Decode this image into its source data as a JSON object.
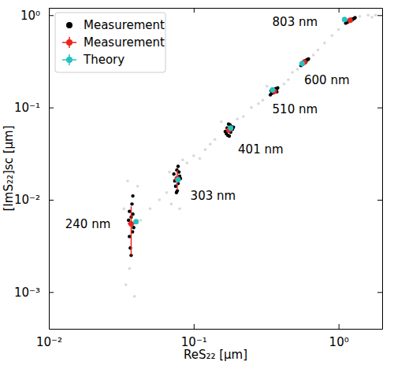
{
  "chart_data": {
    "type": "scatter",
    "x_label": "ReS₂₂ [μm]",
    "y_label": "[ImS₂₂]sc [μm]",
    "log": true,
    "grid": false,
    "legend": "upper left",
    "xlim": [
      0.01,
      2
    ],
    "ylim": [
      0.0004,
      1.2
    ],
    "xticks": [
      {
        "value": 0.01,
        "label": "10⁻²"
      },
      {
        "value": 0.1,
        "label": "10⁻¹"
      },
      {
        "value": 1,
        "label": "10⁰"
      }
    ],
    "yticks": [
      {
        "value": 0.001,
        "label": "10⁻³"
      },
      {
        "value": 0.01,
        "label": "10⁻²"
      },
      {
        "value": 0.1,
        "label": "10⁻¹"
      },
      {
        "value": 1,
        "label": "10⁰"
      }
    ],
    "annotations": [
      {
        "text": "240 nm",
        "x": 0.0186,
        "y": 0.0055
      },
      {
        "text": "303 nm",
        "x": 0.136,
        "y": 0.011
      },
      {
        "text": "401 nm",
        "x": 0.29,
        "y": 0.035
      },
      {
        "text": "510 nm",
        "x": 0.5,
        "y": 0.095
      },
      {
        "text": "600 nm",
        "x": 0.83,
        "y": 0.2
      },
      {
        "text": "803 nm",
        "x": 0.5,
        "y": 0.85
      }
    ],
    "series": [
      {
        "color": "#b8b8b8",
        "marker": "circle",
        "x": [
          0.034,
          0.039,
          0.036,
          0.041,
          0.035,
          0.033,
          0.043,
          0.05,
          0.058,
          0.065,
          0.07,
          0.084,
          0.09,
          0.1,
          0.11,
          0.12,
          0.13,
          0.14,
          0.155,
          0.2,
          0.22,
          0.25,
          0.28,
          0.3,
          0.32,
          0.42,
          0.45,
          0.48,
          0.52,
          0.67,
          0.72,
          0.8,
          0.9,
          1.0,
          1.4,
          1.6,
          1.8,
          1.7,
          0.068,
          0.08
        ],
        "values": [
          0.0012,
          0.0009,
          0.0018,
          0.014,
          0.016,
          0.008,
          0.006,
          0.008,
          0.01,
          0.012,
          0.009,
          0.027,
          0.025,
          0.03,
          0.028,
          0.035,
          0.04,
          0.045,
          0.07,
          0.075,
          0.08,
          0.1,
          0.11,
          0.12,
          0.17,
          0.18,
          0.2,
          0.24,
          0.26,
          0.37,
          0.42,
          0.5,
          0.6,
          0.7,
          0.97,
          1.0,
          1.0,
          0.95,
          0.02,
          0.008
        ]
      },
      {
        "name": "Measurement",
        "color": "#000000",
        "marker": "circle",
        "x": [
          0.037,
          0.036,
          0.038,
          0.0365,
          0.0375,
          0.037,
          0.0385,
          0.0355,
          0.037,
          0.038,
          0.036,
          0.0378,
          0.077,
          0.075,
          0.079,
          0.076,
          0.078,
          0.074,
          0.08,
          0.077,
          0.0765,
          0.078,
          0.073,
          0.081,
          0.175,
          0.168,
          0.182,
          0.172,
          0.178,
          0.165,
          0.185,
          0.17,
          0.18,
          0.176,
          0.174,
          0.188,
          0.36,
          0.345,
          0.372,
          0.35,
          0.365,
          0.338,
          0.38,
          0.355,
          0.368,
          0.342,
          0.375,
          0.358,
          0.58,
          0.56,
          0.6,
          0.57,
          0.59,
          0.55,
          0.62,
          0.575,
          0.595,
          0.565,
          0.61,
          0.585,
          1.2,
          1.15,
          1.25,
          1.18,
          1.22,
          1.12,
          1.3,
          1.19,
          1.24,
          1.16,
          1.28,
          1.21
        ],
        "values": [
          0.0055,
          0.004,
          0.007,
          0.003,
          0.009,
          0.0065,
          0.005,
          0.006,
          0.0025,
          0.011,
          0.0075,
          0.0045,
          0.017,
          0.014,
          0.02,
          0.012,
          0.023,
          0.016,
          0.018,
          0.0125,
          0.021,
          0.015,
          0.019,
          0.017,
          0.057,
          0.052,
          0.062,
          0.05,
          0.065,
          0.055,
          0.058,
          0.06,
          0.054,
          0.049,
          0.066,
          0.061,
          0.15,
          0.142,
          0.158,
          0.148,
          0.155,
          0.137,
          0.163,
          0.145,
          0.16,
          0.152,
          0.148,
          0.157,
          0.31,
          0.295,
          0.325,
          0.3,
          0.318,
          0.285,
          0.335,
          0.305,
          0.312,
          0.292,
          0.33,
          0.32,
          0.88,
          0.84,
          0.91,
          0.86,
          0.9,
          0.82,
          0.94,
          0.87,
          0.89,
          0.85,
          0.92,
          0.88
        ]
      },
      {
        "name": "Measurement",
        "color": "#e8251f",
        "marker": "circle",
        "x": [
          0.037,
          0.077,
          0.175,
          0.36,
          0.58,
          1.2
        ],
        "values": [
          0.0055,
          0.017,
          0.057,
          0.15,
          0.31,
          0.88
        ],
        "x_errors": [
          0.002,
          0.003,
          0.006,
          0.01,
          0.015,
          0.04
        ],
        "y_errors": [
          0.003,
          0.004,
          0.004,
          0.008,
          0.015,
          0.03
        ]
      },
      {
        "name": "Theory",
        "color": "#25c2c4",
        "marker": "circle",
        "x": [
          0.04,
          0.078,
          0.18,
          0.35,
          0.56,
          1.1
        ],
        "values": [
          0.0058,
          0.0165,
          0.06,
          0.155,
          0.3,
          0.9
        ],
        "x_errors": [
          0.001,
          0.001,
          0.002,
          0.004,
          0.006,
          0.01
        ],
        "y_errors": [
          0.0003,
          0.0005,
          0.001,
          0.002,
          0.004,
          0.01
        ]
      }
    ]
  }
}
